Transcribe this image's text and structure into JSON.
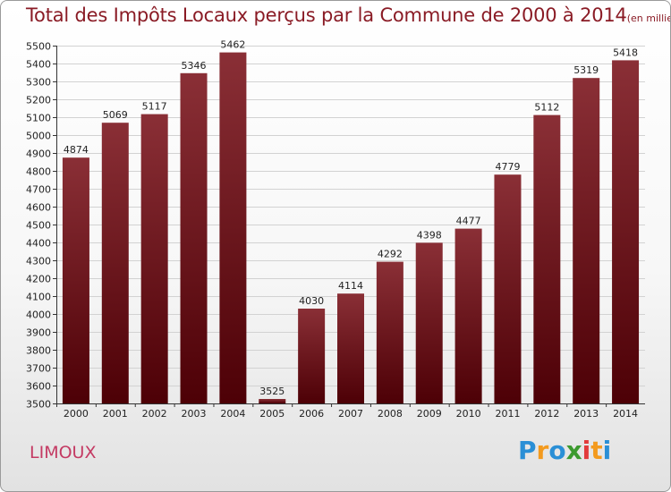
{
  "title": "Total des Impôts Locaux perçus par la Commune de 2000 à 2014",
  "title_unit": "(en milliers d'€)",
  "commune": "LIMOUX",
  "logo": {
    "text": "Proxiti",
    "letters": [
      {
        "ch": "P",
        "color": "#2a8fd6"
      },
      {
        "ch": "r",
        "color": "#f39a1e"
      },
      {
        "ch": "o",
        "color": "#2a8fd6"
      },
      {
        "ch": "x",
        "color": "#3c9a2f"
      },
      {
        "ch": "i",
        "color": "#e23b3b"
      },
      {
        "ch": "t",
        "color": "#f39a1e"
      },
      {
        "ch": "i",
        "color": "#2a8fd6"
      }
    ]
  },
  "colors": {
    "bar_top": "#8a2f36",
    "bar_bottom": "#4d0006",
    "grid": "#d2d2d2",
    "axis": "#333333"
  },
  "chart_data": {
    "type": "bar",
    "title": "Total des Impôts Locaux perçus par la Commune de 2000 à 2014",
    "xlabel": "",
    "ylabel": "",
    "categories": [
      "2000",
      "2001",
      "2002",
      "2003",
      "2004",
      "2005",
      "2006",
      "2007",
      "2008",
      "2009",
      "2010",
      "2011",
      "2012",
      "2013",
      "2014"
    ],
    "values": [
      4874,
      5069,
      5117,
      5346,
      5462,
      3525,
      4030,
      4114,
      4292,
      4398,
      4477,
      4779,
      5112,
      5319,
      5418
    ],
    "ylim": [
      3500,
      5500
    ],
    "yticks": [
      3500,
      3600,
      3700,
      3800,
      3900,
      4000,
      4100,
      4200,
      4300,
      4400,
      4500,
      4600,
      4700,
      4800,
      4900,
      5000,
      5100,
      5200,
      5300,
      5400,
      5500
    ],
    "grid": true
  }
}
